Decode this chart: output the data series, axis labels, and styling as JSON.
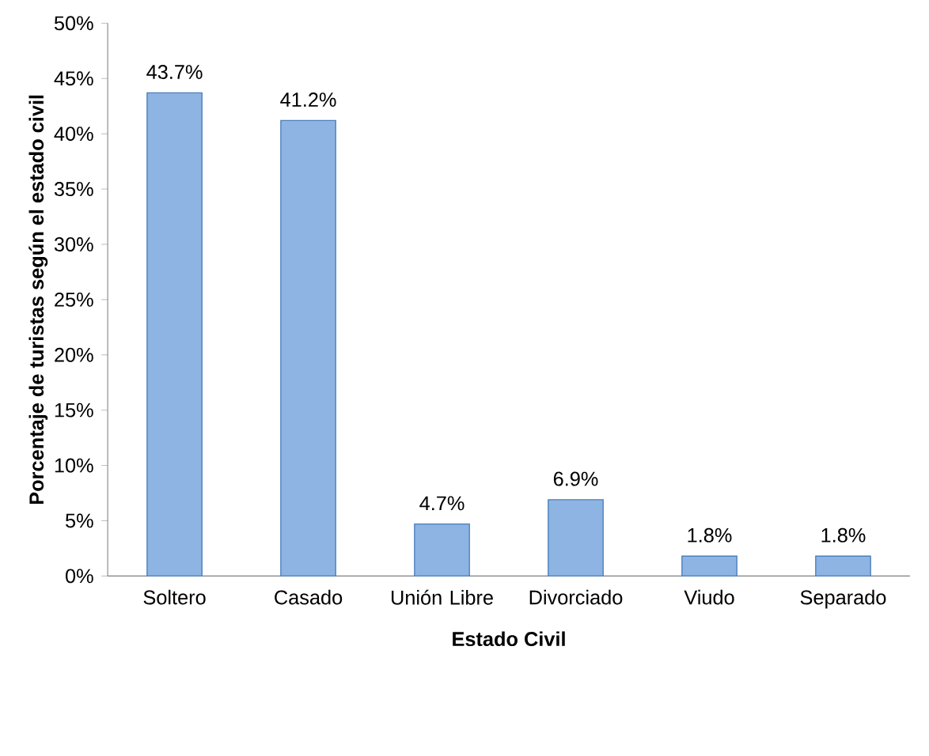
{
  "chart_data": {
    "type": "bar",
    "xlabel": "Estado Civil",
    "ylabel": "Porcentaje de turistas según el estado civil",
    "categories": [
      "Soltero",
      "Casado",
      "Unión Libre",
      "Divorciado",
      "Viudo",
      "Separado"
    ],
    "values": [
      43.7,
      41.2,
      4.7,
      6.9,
      1.8,
      1.8
    ],
    "value_labels": [
      "43.7%",
      "41.2%",
      "4.7%",
      "6.9%",
      "1.8%",
      "1.8%"
    ],
    "color": "#8eb4e3",
    "ylim": [
      0,
      50
    ],
    "yticks": [
      {
        "value": 0,
        "label": "0%"
      },
      {
        "value": 5,
        "label": "5%"
      },
      {
        "value": 10,
        "label": "10%"
      },
      {
        "value": 15,
        "label": "15%"
      },
      {
        "value": 20,
        "label": "20%"
      },
      {
        "value": 25,
        "label": "25%"
      },
      {
        "value": 30,
        "label": "30%"
      },
      {
        "value": 35,
        "label": "35%"
      },
      {
        "value": 40,
        "label": "40%"
      },
      {
        "value": 45,
        "label": "45%"
      },
      {
        "value": 50,
        "label": "50%"
      }
    ]
  }
}
